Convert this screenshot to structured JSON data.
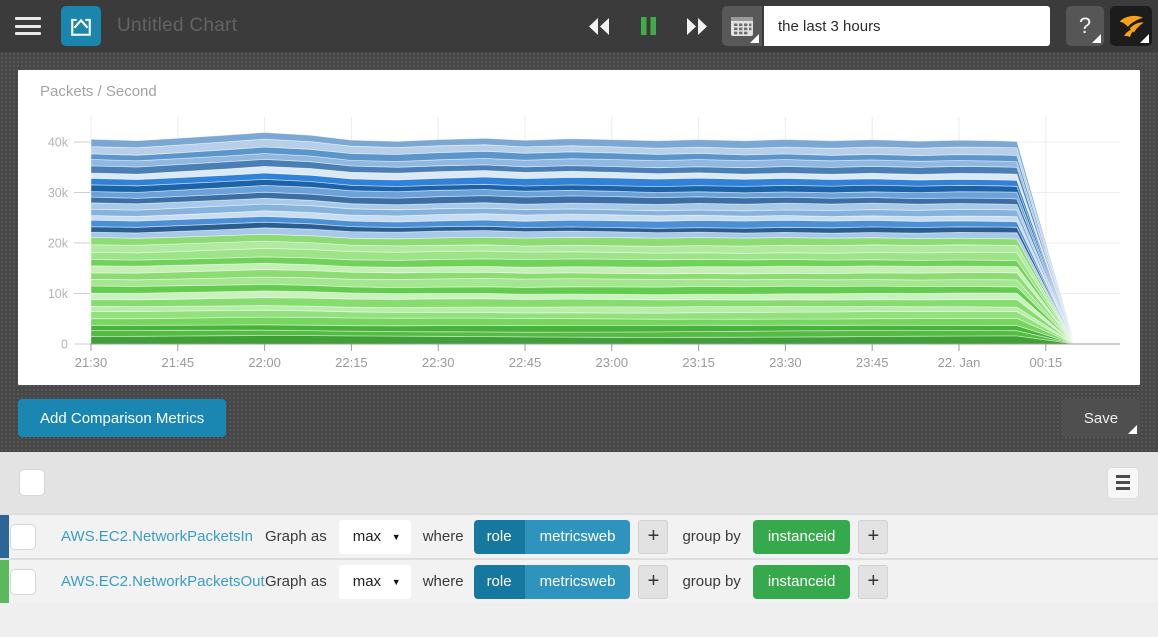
{
  "topbar": {
    "title_placeholder": "Untitled Chart",
    "time_range_value": "the last 3 hours",
    "help_label": "?"
  },
  "actions": {
    "add_comparison_label": "Add Comparison Metrics",
    "save_label": "Save"
  },
  "colors": {
    "accent_teal": "#1a87b2",
    "icon_teal": "#1a86ad",
    "pause_green": "#3fae49",
    "brand_orange": "#f9a11b",
    "tag_key_blue": "#16789e",
    "tag_value_blue": "#2e94bd",
    "tag_green": "#35a94b",
    "row1_stripe": "#2d6597",
    "row2_stripe": "#5cb85c"
  },
  "metrics_table": {
    "labels": {
      "graph_as": "Graph as",
      "where": "where",
      "group_by": "group by",
      "plus": "+"
    },
    "rows": [
      {
        "metric": "AWS.EC2.NetworkPacketsIn",
        "aggregation": "max",
        "filter_key": "role",
        "filter_value": "metricsweb",
        "group_by_value": "instanceid",
        "stripe_color": "#2d6597"
      },
      {
        "metric": "AWS.EC2.NetworkPacketsOut",
        "aggregation": "max",
        "filter_key": "role",
        "filter_value": "metricsweb",
        "group_by_value": "instanceid",
        "stripe_color": "#5cb85c"
      }
    ]
  },
  "chart_data": {
    "type": "area",
    "stacked": true,
    "title": "Packets / Second",
    "x_tick_labels": [
      "21:30",
      "21:45",
      "22:00",
      "22:15",
      "22:30",
      "22:45",
      "23:00",
      "23:15",
      "23:30",
      "23:45",
      "22. Jan",
      "00:15"
    ],
    "x_tick_minutes": [
      0,
      15,
      30,
      45,
      60,
      75,
      90,
      105,
      120,
      135,
      150,
      165
    ],
    "y_ticks": [
      {
        "value": 0,
        "label": "0"
      },
      {
        "value": 10,
        "label": "10k"
      },
      {
        "value": 20,
        "label": "20k"
      },
      {
        "value": 30,
        "label": "30k"
      },
      {
        "value": 40,
        "label": "40k"
      }
    ],
    "ylim_k": [
      0,
      45
    ],
    "grid": true,
    "legend_position": "none",
    "sample_minutes": [
      0,
      8,
      15,
      23,
      30,
      38,
      45,
      53,
      60,
      68,
      75,
      83,
      90,
      98,
      105,
      113,
      120,
      128,
      135,
      143,
      150,
      157,
      160,
      170
    ],
    "stack_total_k": [
      40.4,
      40.1,
      40.6,
      41.2,
      41.8,
      41.3,
      40.4,
      40.2,
      40.6,
      40.9,
      40.5,
      40.8,
      40.6,
      40.3,
      40.5,
      40.2,
      40.4,
      40.1,
      40.3,
      40.0,
      40.2,
      40.1,
      40.0,
      0
    ],
    "groups": [
      {
        "name": "AWS.EC2.NetworkPacketsOut (max, group by instanceid)",
        "fraction_of_total": 0.52,
        "colors": [
          "#3fa035",
          "#55bb45",
          "#49b23a",
          "#76d660",
          "#93e07e",
          "#b9edaa",
          "#86dc6f",
          "#c9f2bd",
          "#63cc4e",
          "#a5e693",
          "#8ddb73",
          "#c4f0b4",
          "#70d25a",
          "#9ce487",
          "#b0eaa0",
          "#8ddb73"
        ],
        "weights": [
          0.07,
          0.05,
          0.055,
          0.065,
          0.06,
          0.05,
          0.07,
          0.055,
          0.065,
          0.07,
          0.06,
          0.06,
          0.065,
          0.07,
          0.065,
          0.07
        ]
      },
      {
        "name": "AWS.EC2.NetworkPacketsIn (max, group by instanceid)",
        "fraction_of_total": 0.48,
        "colors": [
          "#a8c8e8",
          "#2a5d90",
          "#4a90d9",
          "#c9ddf2",
          "#85b3de",
          "#a9c9e8",
          "#3a6ea5",
          "#6ca2d8",
          "#1c62a8",
          "#2f82d8",
          "#dbe9f7",
          "#4a7fb5",
          "#90b8e0",
          "#5a96cc",
          "#b7cfe9",
          "#7ba7d4"
        ],
        "weights": [
          0.06,
          0.05,
          0.065,
          0.055,
          0.06,
          0.06,
          0.065,
          0.06,
          0.06,
          0.07,
          0.06,
          0.065,
          0.065,
          0.065,
          0.07,
          0.07
        ]
      }
    ]
  }
}
